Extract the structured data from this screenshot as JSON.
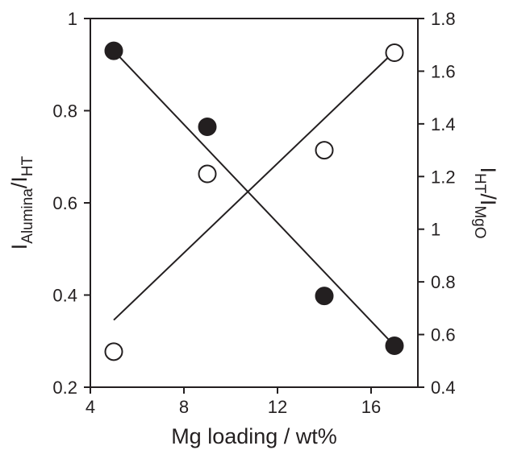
{
  "chart_data": {
    "type": "scatter",
    "title": "",
    "xlabel": "Mg loading / wt%",
    "ylabel_left": {
      "main": "I",
      "sub1": "Alumina",
      "sep": "/I",
      "sub2": "HT"
    },
    "ylabel_right": {
      "main": "I",
      "sub1": "HT",
      "sep": "/I",
      "sub2": "MgO"
    },
    "xlim": [
      4,
      18
    ],
    "ylim_left": [
      0.2,
      1.0
    ],
    "ylim_right": [
      0.4,
      1.8
    ],
    "x_ticks": [
      "4",
      "8",
      "12",
      "16"
    ],
    "y_left_ticks": [
      "0.2",
      "0.4",
      "0.6",
      "0.8",
      "1"
    ],
    "y_right_ticks": [
      "0.4",
      "0.6",
      "0.8",
      "1",
      "1.2",
      "1.4",
      "1.6",
      "1.8"
    ],
    "grid": false,
    "series": [
      {
        "axis": "left",
        "marker": "filled-circle",
        "x": [
          5,
          9,
          14,
          17
        ],
        "y": [
          0.93,
          0.765,
          0.398,
          0.29
        ],
        "fit_line": {
          "x": [
            5,
            17
          ],
          "y": [
            0.93,
            0.29
          ]
        }
      },
      {
        "axis": "right",
        "marker": "open-circle",
        "x": [
          5,
          9,
          14,
          17
        ],
        "y": [
          0.535,
          1.21,
          1.3,
          1.67
        ],
        "fit_line": {
          "x": [
            5,
            17
          ],
          "y": [
            0.655,
            1.675
          ]
        }
      }
    ],
    "colors": {
      "ink": "#231f20",
      "open_fill": "#ffffff"
    }
  }
}
